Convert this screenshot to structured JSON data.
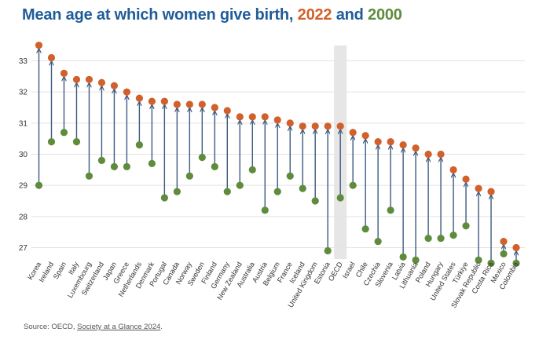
{
  "title": {
    "main": "Mean age at which women give birth, ",
    "year1": "2022",
    "and": " and ",
    "year2": "2000"
  },
  "colors": {
    "title": "#1f5c99",
    "series_2022": "#d2602b",
    "series_2000": "#5e8c3c",
    "connector": "#3d5a80",
    "highlight": "#e6e6e6"
  },
  "chart_data": {
    "type": "dumbbell",
    "ylim": [
      26.6,
      33.5
    ],
    "yticks": [
      27,
      28,
      29,
      30,
      31,
      32,
      33
    ],
    "grid": true,
    "highlight_category": "OECD",
    "categories": [
      "Korea",
      "Ireland",
      "Spain",
      "Italy",
      "Luxembourg",
      "Switzerland",
      "Japan",
      "Greece",
      "Netherlands",
      "Denmark",
      "Portugal",
      "Canada",
      "Norway",
      "Sweden",
      "Finland",
      "Germany",
      "New Zealand",
      "Australia",
      "Austria",
      "Belgium",
      "France",
      "Iceland",
      "United Kingdom",
      "Estonia",
      "OECD",
      "Israel",
      "Chile",
      "Czechia",
      "Slovenia",
      "Latvia",
      "Lithuania",
      "Poland",
      "Hungary",
      "United States",
      "Türkiye",
      "Slovak Republic",
      "Costa Rica",
      "Mexico",
      "Colombia"
    ],
    "series": [
      {
        "name": "2022",
        "values": [
          33.5,
          33.1,
          32.6,
          32.4,
          32.4,
          32.3,
          32.2,
          32.0,
          31.8,
          31.7,
          31.7,
          31.6,
          31.6,
          31.6,
          31.5,
          31.4,
          31.2,
          31.2,
          31.2,
          31.1,
          31.0,
          30.9,
          30.9,
          30.9,
          30.9,
          30.7,
          30.6,
          30.4,
          30.4,
          30.3,
          30.2,
          30.0,
          30.0,
          29.5,
          29.2,
          28.9,
          28.8,
          27.2,
          27.0
        ]
      },
      {
        "name": "2000",
        "values": [
          29.0,
          30.4,
          30.7,
          30.4,
          29.3,
          29.8,
          29.6,
          29.6,
          30.3,
          29.7,
          28.6,
          28.8,
          29.3,
          29.9,
          29.6,
          28.8,
          29.0,
          29.5,
          28.2,
          28.8,
          29.3,
          28.9,
          28.5,
          26.9,
          28.6,
          29.0,
          27.6,
          27.2,
          28.2,
          26.7,
          26.6,
          27.3,
          27.3,
          27.4,
          27.7,
          26.6,
          26.5,
          26.8,
          26.5
        ]
      }
    ]
  },
  "source": {
    "prefix": "Source: OECD, ",
    "link": "Society at a Glance 2024",
    "suffix": "."
  }
}
